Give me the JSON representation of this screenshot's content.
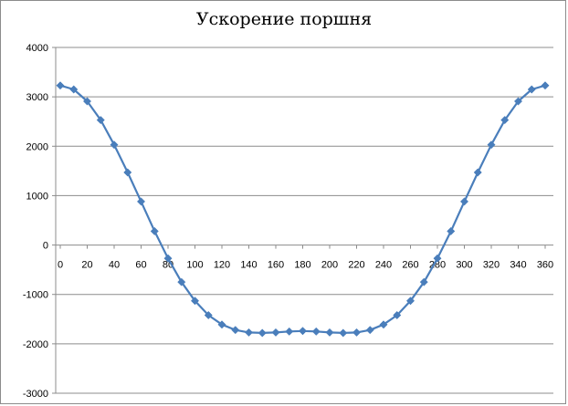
{
  "chart_data": {
    "type": "line",
    "title": "Ускорение поршня",
    "xlabel": "",
    "ylabel": "",
    "x": [
      0,
      10,
      20,
      30,
      40,
      50,
      60,
      70,
      80,
      90,
      100,
      110,
      120,
      130,
      140,
      150,
      160,
      170,
      180,
      190,
      200,
      210,
      220,
      230,
      240,
      250,
      260,
      270,
      280,
      290,
      300,
      310,
      320,
      330,
      340,
      350,
      360
    ],
    "series": [
      {
        "values": [
          3230,
          3150,
          2910,
          2530,
          2030,
          1470,
          880,
          280,
          -270,
          -750,
          -1130,
          -1420,
          -1610,
          -1720,
          -1770,
          -1780,
          -1770,
          -1750,
          -1740,
          -1750,
          -1770,
          -1780,
          -1770,
          -1720,
          -1610,
          -1420,
          -1130,
          -750,
          -270,
          280,
          880,
          1470,
          2030,
          2530,
          2910,
          3150,
          3230
        ],
        "color": "#4a7ebb",
        "marker": "diamond"
      }
    ],
    "x_tick_labels": [
      "0",
      "20",
      "40",
      "60",
      "80",
      "100",
      "120",
      "140",
      "160",
      "180",
      "200",
      "220",
      "240",
      "260",
      "280",
      "300",
      "320",
      "340",
      "360"
    ],
    "y_tick_labels": [
      "4000",
      "3000",
      "2000",
      "1000",
      "0",
      "-1000",
      "-2000",
      "-3000"
    ],
    "ylim": [
      -3000,
      4000
    ],
    "xlim": [
      0,
      360
    ],
    "grid": "horizontal",
    "legend": "none"
  }
}
